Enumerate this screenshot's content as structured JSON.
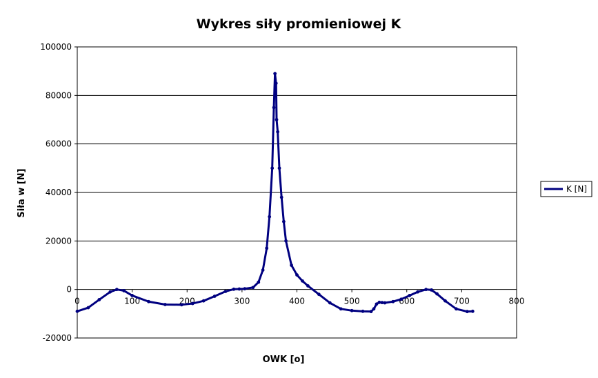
{
  "chart_data": {
    "type": "line",
    "title": "Wykres siły promieniowej K",
    "xlabel": "OWK [o]",
    "ylabel": "Siła w [N]",
    "xlim": [
      0,
      800
    ],
    "ylim": [
      -20000,
      100000
    ],
    "x_ticks": [
      "0",
      "100",
      "200",
      "300",
      "400",
      "500",
      "600",
      "700",
      "800"
    ],
    "y_ticks": [
      "-20000",
      "0",
      "20000",
      "40000",
      "60000",
      "80000",
      "100000"
    ],
    "grid": "horizontal",
    "legend": "right",
    "colors": {
      "series": "#000080"
    },
    "series": [
      {
        "name": "K [N]",
        "x": [
          0,
          20,
          40,
          60,
          72,
          85,
          100,
          130,
          160,
          190,
          210,
          230,
          250,
          270,
          285,
          295,
          305,
          320,
          330,
          338,
          345,
          350,
          355,
          358,
          360,
          362,
          363,
          365,
          368,
          372,
          376,
          380,
          390,
          400,
          410,
          420,
          440,
          460,
          480,
          500,
          520,
          535,
          540,
          545,
          550,
          555,
          560,
          575,
          590,
          605,
          620,
          635,
          645,
          655,
          670,
          690,
          710,
          720
        ],
        "y": [
          -9000,
          -7500,
          -4200,
          -1000,
          0,
          -500,
          -2500,
          -5000,
          -6200,
          -6300,
          -5800,
          -4700,
          -2800,
          -800,
          100,
          200,
          300,
          800,
          3000,
          8000,
          17000,
          30000,
          50000,
          75000,
          89000,
          85000,
          70000,
          65000,
          50000,
          38000,
          28000,
          20000,
          10000,
          6000,
          3500,
          1500,
          -2000,
          -5500,
          -8000,
          -8700,
          -9000,
          -9100,
          -8000,
          -6000,
          -5300,
          -5400,
          -5500,
          -5000,
          -4000,
          -2500,
          -1000,
          0,
          -200,
          -1800,
          -4700,
          -8000,
          -9100,
          -9000
        ]
      }
    ]
  }
}
